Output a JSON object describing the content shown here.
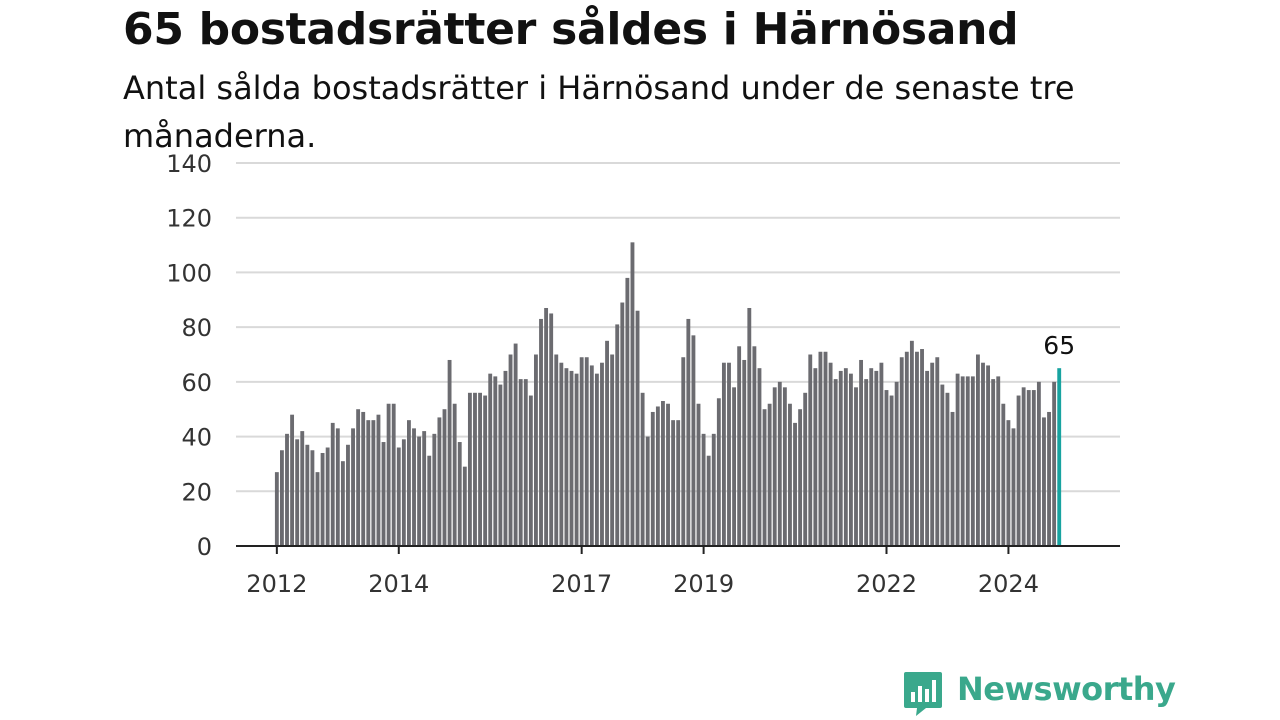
{
  "header": {
    "title": "65 bostadsrätter såldes i Härnösand",
    "subtitle": "Antal sålda bostadsrätter i Härnösand under de senaste tre månaderna."
  },
  "brand": {
    "name": "Newsworthy",
    "logo_icon": "bar-chart-speech-bubble-icon",
    "color": "#3aa88c"
  },
  "colors": {
    "bar": "#6b6b70",
    "highlight": "#17a3a0",
    "grid": "#d9d9d9",
    "axis": "#222222"
  },
  "chart_data": {
    "type": "bar",
    "title": "65 bostadsrätter såldes i Härnösand",
    "subtitle": "Antal sålda bostadsrätter i Härnösand under de senaste tre månaderna.",
    "xlabel": "",
    "ylabel": "",
    "ylim": [
      0,
      140
    ],
    "yticks": [
      0,
      20,
      40,
      60,
      80,
      100,
      120,
      140
    ],
    "x_range": [
      2011.33,
      2025.83
    ],
    "xticks": [
      2012,
      2014,
      2017,
      2019,
      2022,
      2024
    ],
    "grid": true,
    "legend": "none",
    "start": 2012.0,
    "step": 0.08333,
    "values": [
      27,
      35,
      41,
      48,
      39,
      42,
      37,
      35,
      27,
      34,
      36,
      45,
      43,
      31,
      37,
      43,
      50,
      49,
      46,
      46,
      48,
      38,
      52,
      52,
      36,
      39,
      46,
      43,
      40,
      42,
      33,
      41,
      47,
      50,
      68,
      52,
      38,
      29,
      56,
      56,
      56,
      55,
      63,
      62,
      59,
      64,
      70,
      74,
      61,
      61,
      55,
      70,
      83,
      87,
      85,
      70,
      67,
      65,
      64,
      63,
      69,
      69,
      66,
      63,
      67,
      75,
      70,
      81,
      89,
      98,
      111,
      86,
      56,
      40,
      49,
      51,
      53,
      52,
      46,
      46,
      69,
      83,
      77,
      52,
      41,
      33,
      41,
      54,
      67,
      67,
      58,
      73,
      68,
      87,
      73,
      65,
      50,
      52,
      58,
      60,
      58,
      52,
      45,
      50,
      56,
      70,
      65,
      71,
      71,
      67,
      61,
      64,
      65,
      63,
      58,
      68,
      61,
      65,
      64,
      67,
      57,
      55,
      60,
      69,
      71,
      75,
      71,
      72,
      64,
      67,
      69,
      59,
      56,
      49,
      63,
      62,
      62,
      62,
      70,
      67,
      66,
      61,
      62,
      52,
      46,
      43,
      55,
      58,
      57,
      57,
      60,
      47,
      49,
      60,
      65
    ],
    "highlight_last": true,
    "last_label": "65"
  }
}
